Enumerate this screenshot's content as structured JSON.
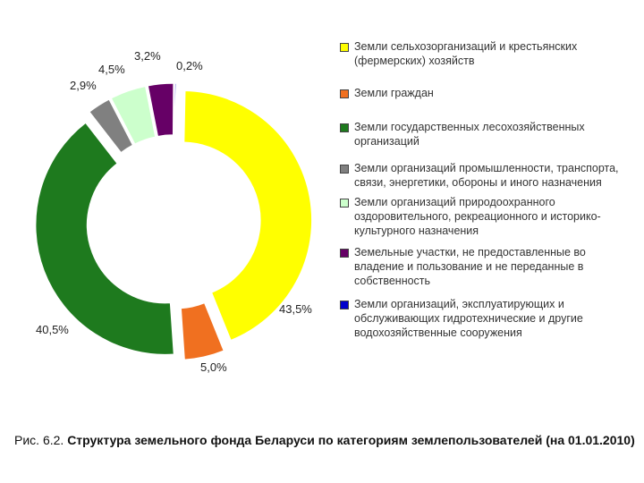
{
  "chart_data": {
    "type": "pie",
    "style": "exploded donut",
    "slices": [
      {
        "label": "Земли сельхозорганизаций и крестьянских (фермерских) хозяйств",
        "value": 43.5,
        "value_label": "43,5%",
        "color": "#ffff00"
      },
      {
        "label": "Земли граждан",
        "value": 5.0,
        "value_label": "5,0%",
        "color": "#f07020"
      },
      {
        "label": "Земли государственных лесохозяйственных организаций",
        "value": 40.5,
        "value_label": "40,5%",
        "color": "#1e7a1e"
      },
      {
        "label": "Земли организаций промышленности, транспорта, связи, энергетики, обороны и иного назначения",
        "value": 2.9,
        "value_label": "2,9%",
        "color": "#808080"
      },
      {
        "label": "Земли организаций природоохранного оздоровительного, рекреационного и историко-культурного назначения",
        "value": 4.5,
        "value_label": "4,5%",
        "color": "#ccffcc"
      },
      {
        "label": "Земельные участки, не предоставленные во владение и пользование и не переданные в собственность",
        "value": 3.2,
        "value_label": "3,2%",
        "color": "#660066"
      },
      {
        "label": "Земли организаций, эксплуатирующих и обслуживающих гидротехнические и другие водохозяйственные сооружения",
        "value": 0.2,
        "value_label": "0,2%",
        "color": "#0000cc"
      }
    ],
    "legend_position": "right"
  },
  "caption": {
    "prefix": "Рис. 6.2.",
    "title": "Структура земельного фонда Беларуси по категориям землепользователей (на 01.01.2010)"
  }
}
